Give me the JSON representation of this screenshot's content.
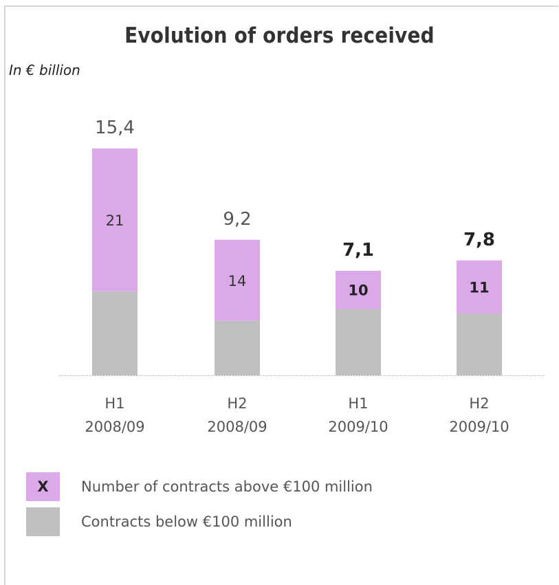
{
  "chart_data": {
    "type": "bar",
    "stacked": true,
    "title": "Evolution of orders received",
    "subtitle": "In € billion",
    "categories": [
      [
        "H1",
        "2008/09"
      ],
      [
        "H2",
        "2008/09"
      ],
      [
        "H1",
        "2009/10"
      ],
      [
        "H2",
        "2009/10"
      ]
    ],
    "totals": [
      "15,4",
      "9,2",
      "7,1",
      "7,8"
    ],
    "totals_values": [
      15.4,
      9.2,
      7.1,
      7.8
    ],
    "totals_bold": [
      false,
      false,
      true,
      true
    ],
    "series": [
      {
        "name": "Contracts below €100 million",
        "values": [
          5.7,
          3.7,
          4.5,
          4.2
        ],
        "color": "#bfbfbf"
      },
      {
        "name": "Number of contracts above €100 million",
        "values": [
          9.7,
          5.5,
          2.6,
          3.6
        ],
        "color": "#dca9e8",
        "labels": [
          "21",
          "14",
          "10",
          "11"
        ],
        "labels_bold": [
          false,
          false,
          true,
          true
        ]
      }
    ],
    "ylim": [
      0,
      15.4
    ],
    "grid": false,
    "legend_position": "bottom-left"
  },
  "legend": {
    "items": [
      {
        "swatch_text": "X",
        "label": "Number of contracts above €100 million",
        "color": "#dca9e8"
      },
      {
        "swatch_text": "",
        "label": "Contracts below €100 million",
        "color": "#bfbfbf"
      }
    ]
  }
}
